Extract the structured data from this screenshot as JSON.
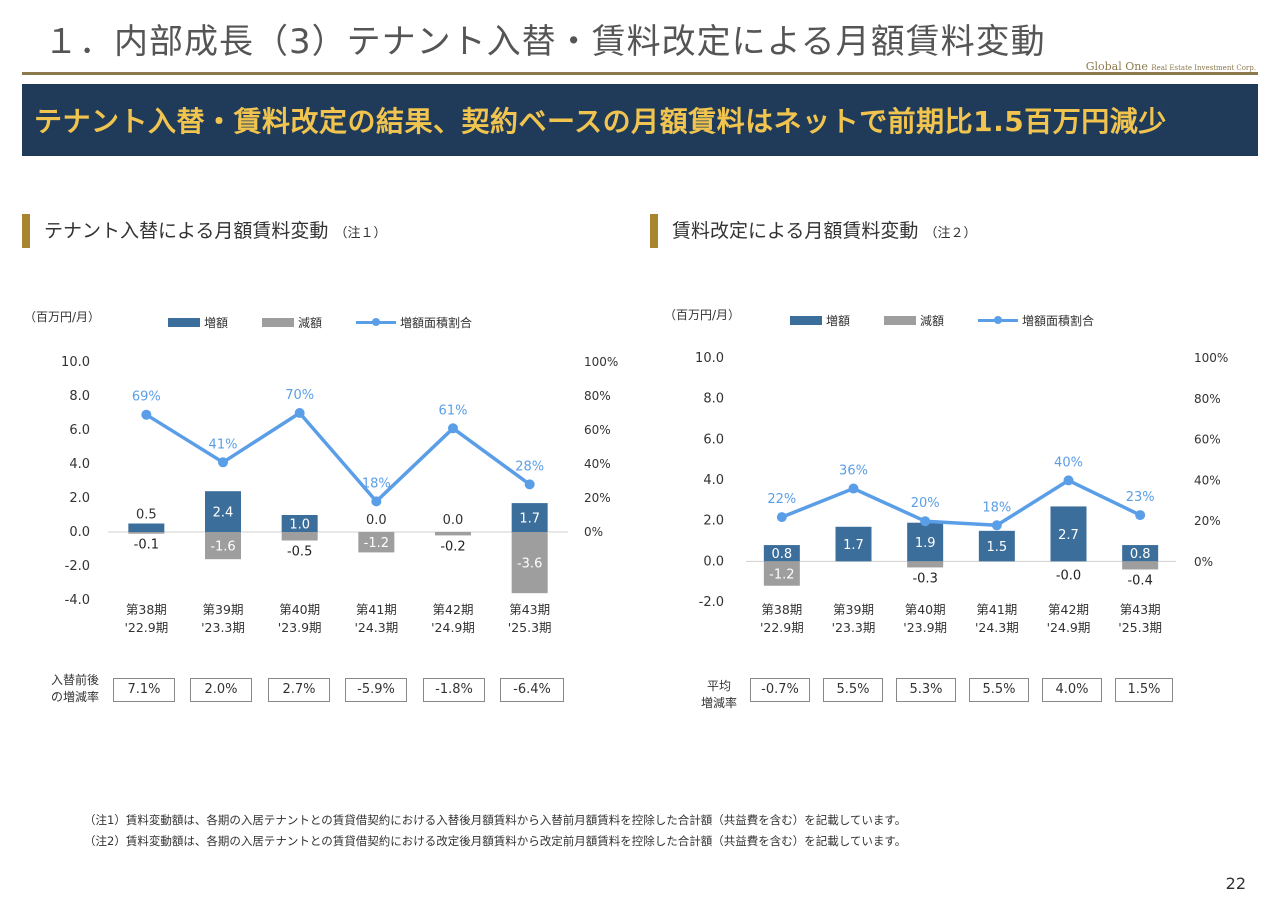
{
  "page": {
    "title": "１．内部成長（3）テナント入替・賃料改定による月額賃料変動",
    "logo_main": "Global One",
    "logo_sub": "Real Estate Investment Corp.",
    "banner": "テナント入替・賃料改定の結果、契約ベースの月額賃料はネットで前期比1.5百万円減少",
    "page_number": "22",
    "colors": {
      "increase": "#3c6e9c",
      "decrease": "#9e9e9e",
      "ratio": "#5b9ee8",
      "accent": "#a9852f",
      "banner_bg": "#1f3b59",
      "banner_text": "#f0c44f"
    }
  },
  "left": {
    "heading": "テナント入替による月額賃料変動",
    "heading_note": "（注１）",
    "unit": "（百万円/月）",
    "rate_label_1": "入替前後",
    "rate_label_2": "の増減率",
    "rates": [
      "7.1%",
      "2.0%",
      "2.7%",
      "-5.9%",
      "-1.8%",
      "-6.4%"
    ]
  },
  "right": {
    "heading": "賃料改定による月額賃料変動",
    "heading_note": "（注２）",
    "unit": "（百万円/月）",
    "rate_label_1": "平均",
    "rate_label_2": "増減率",
    "rates": [
      "-0.7%",
      "5.5%",
      "5.3%",
      "5.5%",
      "4.0%",
      "1.5%"
    ]
  },
  "legend": {
    "increase": "増額",
    "decrease": "減額",
    "ratio": "増額面積割合"
  },
  "notes": {
    "n1": "（注1）賃料変動額は、各期の入居テナントとの賃貸借契約における入替後月額賃料から入替前月額賃料を控除した合計額（共益費を含む）を記載しています。",
    "n2": "（注2）賃料変動額は、各期の入居テナントとの賃貸借契約における改定後月額賃料から改定前月額賃料を控除した合計額（共益費を含む）を記載しています。"
  },
  "chart_data": [
    {
      "type": "bar",
      "categories": [
        "第38期\n'22.9期",
        "第39期\n'23.3期",
        "第40期\n'23.9期",
        "第41期\n'24.3期",
        "第42期\n'24.9期",
        "第43期\n'25.3期"
      ],
      "series": [
        {
          "name": "増額",
          "values": [
            0.5,
            2.4,
            1.0,
            0.0,
            0.0,
            1.7
          ],
          "labels": [
            "0.5",
            "2.4",
            "1.0",
            "0.0",
            "0.0",
            "1.7"
          ]
        },
        {
          "name": "減額",
          "values": [
            -0.1,
            -1.6,
            -0.5,
            -1.2,
            -0.2,
            -3.6
          ],
          "labels": [
            "-0.1",
            "-1.6",
            "-0.5",
            "-1.2",
            "-0.2",
            "-3.6"
          ]
        },
        {
          "name": "増額面積割合",
          "values": [
            69,
            41,
            70,
            18,
            61,
            28
          ],
          "labels": [
            "69%",
            "41%",
            "70%",
            "18%",
            "61%",
            "28%"
          ]
        }
      ],
      "ylim": [
        -4.0,
        10.0
      ],
      "yticks": [
        "10.0",
        "8.0",
        "6.0",
        "4.0",
        "2.0",
        "0.0",
        "-2.0",
        "-4.0"
      ],
      "y2lim": [
        0,
        100
      ],
      "y2ticks": [
        "100%",
        "80%",
        "60%",
        "40%",
        "20%",
        "0%"
      ]
    },
    {
      "type": "bar",
      "categories": [
        "第38期\n'22.9期",
        "第39期\n'23.3期",
        "第40期\n'23.9期",
        "第41期\n'24.3期",
        "第42期\n'24.9期",
        "第43期\n'25.3期"
      ],
      "series": [
        {
          "name": "増額",
          "values": [
            0.8,
            1.7,
            1.9,
            1.5,
            2.7,
            0.8
          ],
          "labels": [
            "0.8",
            "1.7",
            "1.9",
            "1.5",
            "2.7",
            "0.8"
          ]
        },
        {
          "name": "減額",
          "values": [
            -1.2,
            0.0,
            -0.3,
            0.0,
            0.0,
            -0.4
          ],
          "labels": [
            "-1.2",
            "",
            "-0.3",
            "",
            "-0.0",
            "-0.4"
          ]
        },
        {
          "name": "増額面積割合",
          "values": [
            22,
            36,
            20,
            18,
            40,
            23
          ],
          "labels": [
            "22%",
            "36%",
            "20%",
            "18%",
            "40%",
            "23%"
          ]
        }
      ],
      "ylim": [
        -2.0,
        10.0
      ],
      "yticks": [
        "10.0",
        "8.0",
        "6.0",
        "4.0",
        "2.0",
        "0.0",
        "-2.0"
      ],
      "y2lim": [
        0,
        100
      ],
      "y2ticks": [
        "100%",
        "80%",
        "60%",
        "40%",
        "20%",
        "0%"
      ]
    }
  ]
}
